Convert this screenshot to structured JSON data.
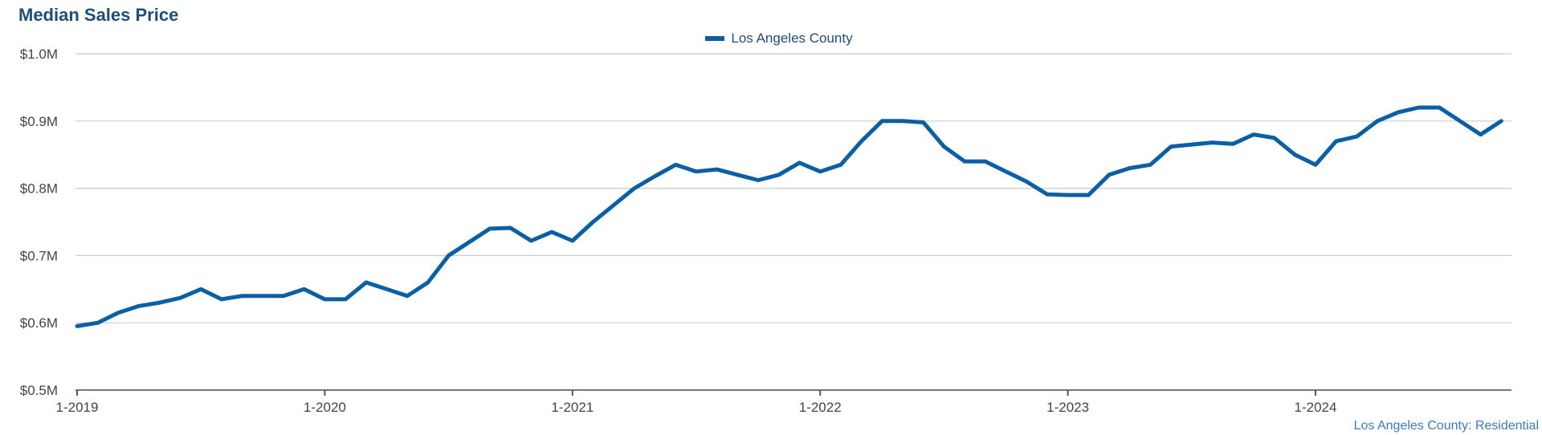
{
  "header": {
    "title": "Median Sales Price"
  },
  "legend": {
    "label": "Los Angeles County"
  },
  "source": "Los Angeles County: Residential",
  "colors": {
    "series": "#0b5fa5",
    "title": "#1f4e79",
    "grid": "#cccccc"
  },
  "chart_data": {
    "type": "line",
    "title": "Median Sales Price",
    "xlabel": "",
    "ylabel": "",
    "ylim": [
      0.5,
      1.0
    ],
    "yticks": [
      "$0.5M",
      "$0.6M",
      "$0.7M",
      "$0.8M",
      "$0.9M",
      "$1.0M"
    ],
    "ytick_values": [
      0.5,
      0.6,
      0.7,
      0.8,
      0.9,
      1.0
    ],
    "xticks": [
      "1-2019",
      "1-2020",
      "1-2021",
      "1-2022",
      "1-2023",
      "1-2024"
    ],
    "grid": true,
    "legend_position": "top-center",
    "series": [
      {
        "name": "Los Angeles County",
        "start": "2019-01",
        "frequency": "monthly",
        "values": [
          0.595,
          0.6,
          0.615,
          0.625,
          0.63,
          0.637,
          0.65,
          0.635,
          0.64,
          0.64,
          0.64,
          0.65,
          0.635,
          0.635,
          0.66,
          0.65,
          0.64,
          0.66,
          0.7,
          0.72,
          0.74,
          0.741,
          0.722,
          0.735,
          0.722,
          0.75,
          0.775,
          0.8,
          0.818,
          0.835,
          0.825,
          0.828,
          0.82,
          0.812,
          0.82,
          0.838,
          0.825,
          0.835,
          0.87,
          0.9,
          0.9,
          0.898,
          0.862,
          0.84,
          0.84,
          0.825,
          0.81,
          0.791,
          0.79,
          0.79,
          0.82,
          0.83,
          0.835,
          0.862,
          0.865,
          0.868,
          0.866,
          0.88,
          0.875,
          0.85,
          0.835,
          0.87,
          0.877,
          0.9,
          0.913,
          0.92,
          0.92,
          0.9,
          0.88,
          0.9
        ]
      }
    ]
  }
}
